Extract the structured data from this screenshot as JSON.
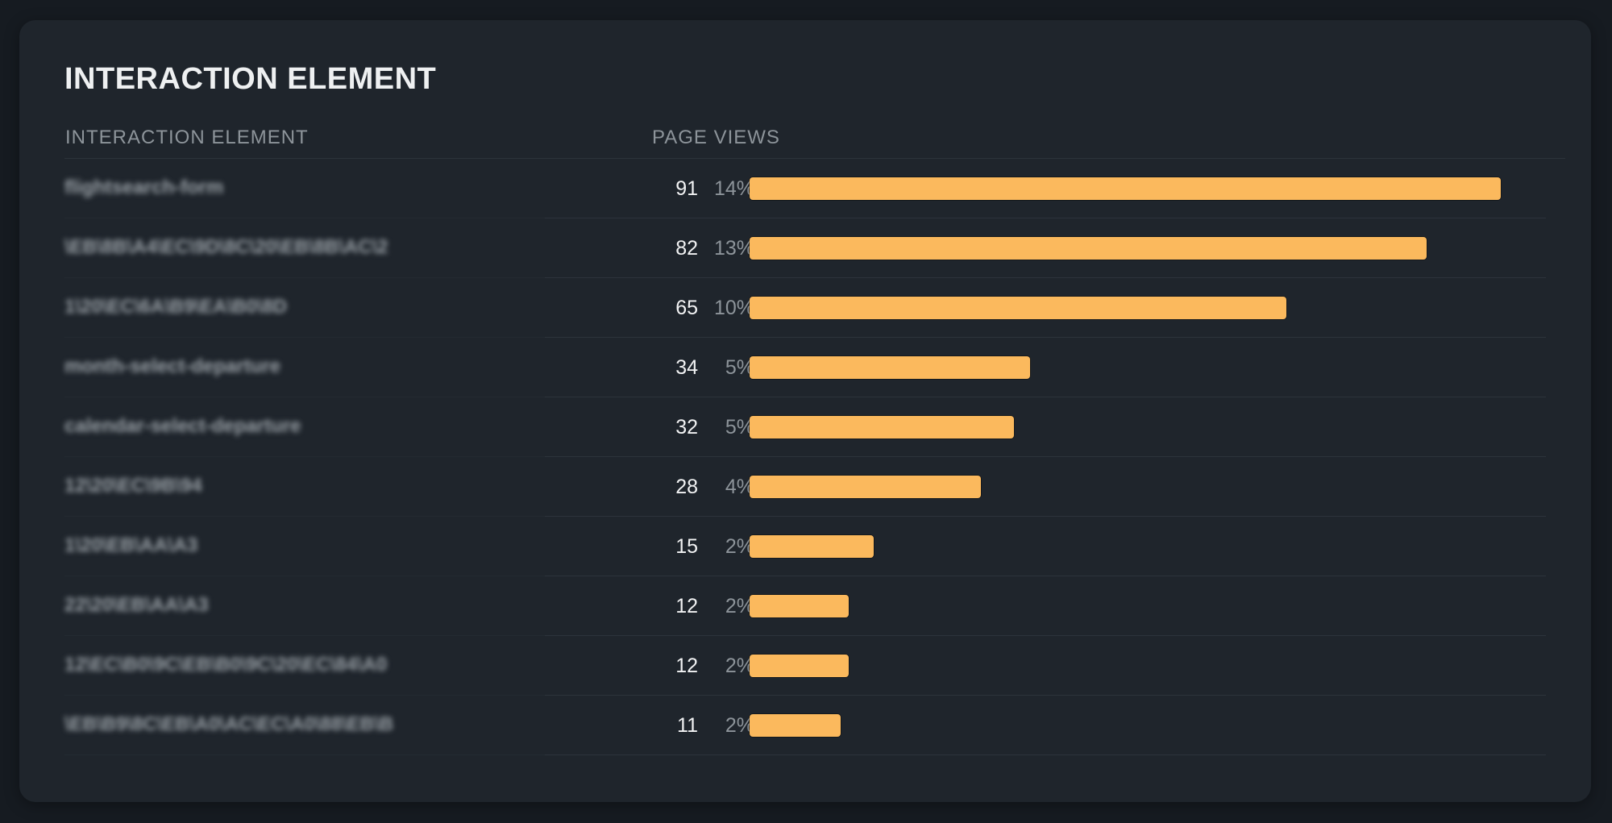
{
  "card": {
    "title": "INTERACTION ELEMENT",
    "columns": {
      "element": "INTERACTION ELEMENT",
      "page_views": "PAGE VIEWS"
    },
    "rows": [
      {
        "label": "flightsearch-form",
        "views": "91",
        "pct": "14%",
        "value": 91
      },
      {
        "label": "\\EB\\8B\\A4\\EC\\9D\\8C\\20\\EB\\8B\\AC\\2",
        "views": "82",
        "pct": "13%",
        "value": 82
      },
      {
        "label": "1\\20\\EC\\6A\\B9\\EA\\B0\\8D",
        "views": "65",
        "pct": "10%",
        "value": 65
      },
      {
        "label": "month-select-departure",
        "views": "34",
        "pct": "5%",
        "value": 34
      },
      {
        "label": "calendar-select-departure",
        "views": "32",
        "pct": "5%",
        "value": 32
      },
      {
        "label": "12\\20\\EC\\9B\\94",
        "views": "28",
        "pct": "4%",
        "value": 28
      },
      {
        "label": "1\\20\\EB\\AA\\A3",
        "views": "15",
        "pct": "2%",
        "value": 15
      },
      {
        "label": "22\\20\\EB\\AA\\A3",
        "views": "12",
        "pct": "2%",
        "value": 12
      },
      {
        "label": "12\\EC\\B0\\9C\\EB\\B0\\9C\\20\\EC\\84\\A0",
        "views": "12",
        "pct": "2%",
        "value": 12
      },
      {
        "label": "\\EB\\B9\\8C\\EB\\A0\\AC\\EC\\A0\\88\\EB\\B",
        "views": "11",
        "pct": "2%",
        "value": 11
      }
    ]
  },
  "colors": {
    "bar": "#fbb95d",
    "card_bg": "#1f252c",
    "page_bg": "#161b21"
  },
  "chart_data": {
    "type": "bar",
    "orientation": "horizontal",
    "title": "INTERACTION ELEMENT",
    "xlabel": "PAGE VIEWS",
    "ylabel": "INTERACTION ELEMENT",
    "categories": [
      "flightsearch-form",
      "\\EB\\8B\\A4\\EC\\9D\\8C\\20\\EB\\8B\\AC\\2",
      "1\\20\\EC\\6A\\B9\\EA\\B0\\8D",
      "month-select-departure",
      "calendar-select-departure",
      "12\\20\\EC\\9B\\94",
      "1\\20\\EB\\AA\\A3",
      "22\\20\\EB\\AA\\A3",
      "12\\EC\\B0\\9C\\EB\\B0\\9C\\20\\EC\\84\\A0",
      "\\EB\\B9\\8C\\EB\\A0\\AC\\EC\\A0\\88\\EB\\B"
    ],
    "values": [
      91,
      82,
      65,
      34,
      32,
      28,
      15,
      12,
      12,
      11
    ],
    "percentages": [
      "14%",
      "13%",
      "10%",
      "5%",
      "5%",
      "4%",
      "2%",
      "2%",
      "2%",
      "2%"
    ],
    "grid": false,
    "legend": "none",
    "bar_color": "#fbb95d"
  }
}
